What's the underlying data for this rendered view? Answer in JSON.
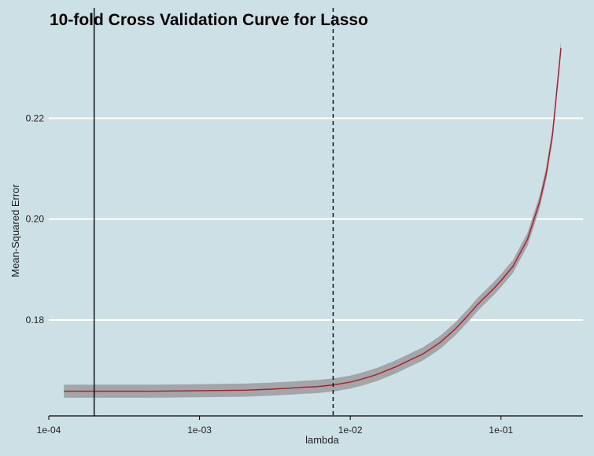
{
  "chart_data": {
    "type": "line",
    "title": "10-fold Cross Validation Curve for Lasso",
    "xlabel": "lambda",
    "ylabel": "Mean-Squared Error",
    "x_scale": "log10",
    "xlim": [
      0.0001,
      0.35
    ],
    "ylim": [
      0.161,
      0.2375
    ],
    "x_ticks": [
      {
        "value": 0.0001,
        "label": "1e-04"
      },
      {
        "value": 0.001,
        "label": "1e-03"
      },
      {
        "value": 0.01,
        "label": "1e-02"
      },
      {
        "value": 0.1,
        "label": "1e-01"
      }
    ],
    "y_ticks": [
      {
        "value": 0.18,
        "label": "0.18"
      },
      {
        "value": 0.2,
        "label": "0.20"
      },
      {
        "value": 0.22,
        "label": "0.22"
      }
    ],
    "grid": "horizontal",
    "series": [
      {
        "x": [
          0.000126,
          0.0002,
          0.0005,
          0.001,
          0.002,
          0.003,
          0.004,
          0.005,
          0.006,
          0.007,
          0.008,
          0.01,
          0.012,
          0.015,
          0.02,
          0.025,
          0.03,
          0.035,
          0.04,
          0.05,
          0.06,
          0.07,
          0.08,
          0.09,
          0.1,
          0.12,
          0.15,
          0.18,
          0.2,
          0.22,
          0.25
        ],
        "y": [
          0.1659,
          0.1659,
          0.1659,
          0.166,
          0.1661,
          0.1663,
          0.1665,
          0.1667,
          0.1668,
          0.167,
          0.1672,
          0.1677,
          0.1683,
          0.1692,
          0.1707,
          0.1721,
          0.1732,
          0.1745,
          0.1757,
          0.1783,
          0.1808,
          0.1831,
          0.1848,
          0.1863,
          0.1878,
          0.1906,
          0.196,
          0.2033,
          0.2091,
          0.2169,
          0.2339
        ],
        "band_halfwidth": 0.0013,
        "line_color": "#b2182b",
        "band_color": "#a3a6a8"
      }
    ],
    "vertical_lines": [
      {
        "x": 0.0002,
        "style": "solid",
        "color": "#000000"
      },
      {
        "x": 0.0077,
        "style": "dashed",
        "color": "#000000"
      }
    ],
    "colors": {
      "background": "#cde0e6",
      "grid": "#ffffff"
    }
  }
}
